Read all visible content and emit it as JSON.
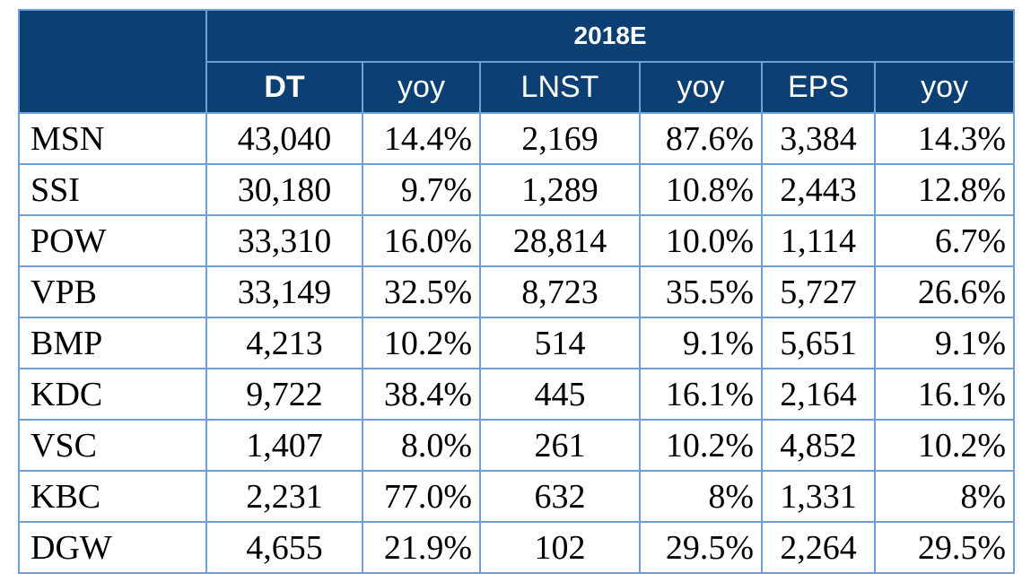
{
  "header": {
    "year": "2018E",
    "columns": [
      "DT",
      "yoy",
      "LNST",
      "yoy",
      "EPS",
      "yoy"
    ]
  },
  "rows": [
    {
      "ticker": "MSN",
      "dt": "43,040",
      "dt_yoy": "14.4%",
      "lnst": "2,169",
      "lnst_yoy": "87.6%",
      "eps": "3,384",
      "eps_yoy": "14.3%"
    },
    {
      "ticker": "SSI",
      "dt": "30,180",
      "dt_yoy": "9.7%",
      "lnst": "1,289",
      "lnst_yoy": "10.8%",
      "eps": "2,443",
      "eps_yoy": "12.8%"
    },
    {
      "ticker": "POW",
      "dt": "33,310",
      "dt_yoy": "16.0%",
      "lnst": "28,814",
      "lnst_yoy": "10.0%",
      "eps": "1,114",
      "eps_yoy": "6.7%"
    },
    {
      "ticker": "VPB",
      "dt": "33,149",
      "dt_yoy": "32.5%",
      "lnst": "8,723",
      "lnst_yoy": "35.5%",
      "eps": "5,727",
      "eps_yoy": "26.6%"
    },
    {
      "ticker": "BMP",
      "dt": "4,213",
      "dt_yoy": "10.2%",
      "lnst": "514",
      "lnst_yoy": "9.1%",
      "eps": "5,651",
      "eps_yoy": "9.1%"
    },
    {
      "ticker": "KDC",
      "dt": "9,722",
      "dt_yoy": "38.4%",
      "lnst": "445",
      "lnst_yoy": "16.1%",
      "eps": "2,164",
      "eps_yoy": "16.1%"
    },
    {
      "ticker": "VSC",
      "dt": "1,407",
      "dt_yoy": "8.0%",
      "lnst": "261",
      "lnst_yoy": "10.2%",
      "eps": "4,852",
      "eps_yoy": "10.2%"
    },
    {
      "ticker": "KBC",
      "dt": "2,231",
      "dt_yoy": "77.0%",
      "lnst": "632",
      "lnst_yoy": "8%",
      "eps": "1,331",
      "eps_yoy": "8%"
    },
    {
      "ticker": "DGW",
      "dt": "4,655",
      "dt_yoy": "21.9%",
      "lnst": "102",
      "lnst_yoy": "29.5%",
      "eps": "2,264",
      "eps_yoy": "29.5%"
    }
  ]
}
